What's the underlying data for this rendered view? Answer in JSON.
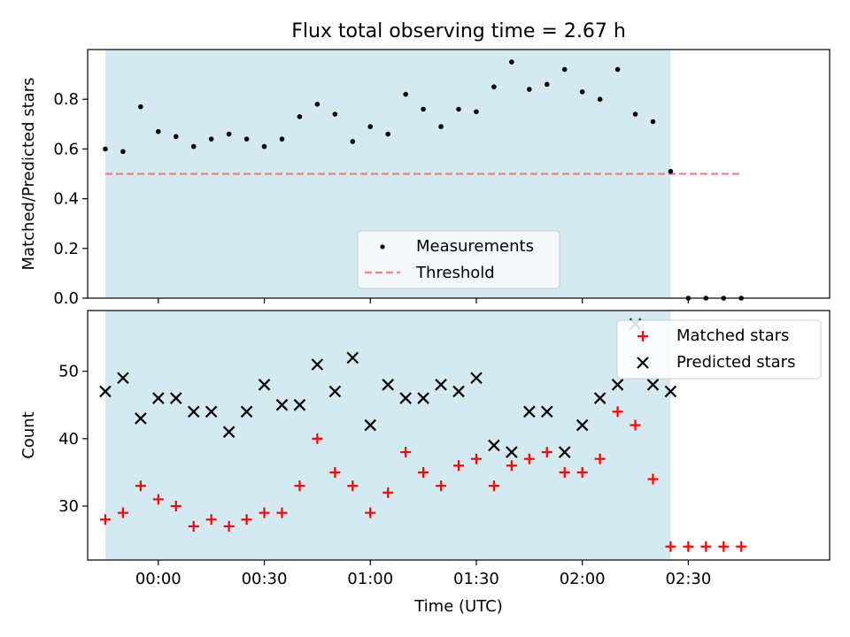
{
  "title": "Flux total observing time = 2.67 h",
  "colors": {
    "shade": "#d4eaf0",
    "measurement": "#000000",
    "threshold": "#f08080",
    "matched": "#ff0000",
    "predicted": "#000000"
  },
  "chart_data": [
    {
      "type": "scatter",
      "ylabel": "Matched/Predicted stars",
      "xlabel": "",
      "xlim": [
        -20,
        190
      ],
      "ylim": [
        0,
        1.0
      ],
      "yticks": [
        0.0,
        0.2,
        0.4,
        0.6,
        0.8
      ],
      "ytick_labels": [
        "0.0",
        "0.2",
        "0.4",
        "0.6",
        "0.8"
      ],
      "x_ticks_minutes": [
        0,
        30,
        60,
        90,
        120,
        150
      ],
      "shaded_span_minutes": [
        -15,
        145
      ],
      "threshold": {
        "value": 0.5,
        "x_range_minutes": [
          -15,
          165
        ]
      },
      "legend": {
        "position": "lower-center",
        "entries": [
          "Measurements",
          "Threshold"
        ]
      },
      "series": [
        {
          "name": "Measurements",
          "marker": "dot",
          "x": [
            -15,
            -10,
            -5,
            0,
            5,
            10,
            15,
            20,
            25,
            30,
            35,
            40,
            45,
            50,
            55,
            60,
            65,
            70,
            75,
            80,
            85,
            90,
            95,
            100,
            105,
            110,
            115,
            120,
            125,
            130,
            135,
            140,
            145,
            150,
            155,
            160,
            165
          ],
          "y": [
            0.6,
            0.59,
            0.77,
            0.67,
            0.65,
            0.61,
            0.64,
            0.66,
            0.64,
            0.61,
            0.64,
            0.73,
            0.78,
            0.74,
            0.63,
            0.69,
            0.66,
            0.82,
            0.76,
            0.69,
            0.76,
            0.75,
            0.85,
            0.95,
            0.84,
            0.86,
            0.92,
            0.83,
            0.8,
            0.92,
            0.74,
            0.71,
            0.51,
            0.0,
            0.0,
            0.0,
            0.0
          ]
        }
      ]
    },
    {
      "type": "scatter",
      "ylabel": "Count",
      "xlabel": "Time (UTC)",
      "xlim": [
        -20,
        190
      ],
      "ylim": [
        22,
        59
      ],
      "yticks": [
        30,
        40,
        50
      ],
      "ytick_labels": [
        "30",
        "40",
        "50"
      ],
      "x_ticks_minutes": [
        0,
        30,
        60,
        90,
        120,
        150
      ],
      "xtick_labels": [
        "00:00",
        "00:30",
        "01:00",
        "01:30",
        "02:00",
        "02:30"
      ],
      "shaded_span_minutes": [
        -15,
        145
      ],
      "legend": {
        "position": "upper-right",
        "entries": [
          "Matched stars",
          "Predicted stars"
        ]
      },
      "series": [
        {
          "name": "Matched stars",
          "marker": "plus",
          "x": [
            -15,
            -10,
            -5,
            0,
            5,
            10,
            15,
            20,
            25,
            30,
            35,
            40,
            45,
            50,
            55,
            60,
            65,
            70,
            75,
            80,
            85,
            90,
            95,
            100,
            105,
            110,
            115,
            120,
            125,
            130,
            135,
            140,
            145,
            150,
            155,
            160,
            165
          ],
          "y": [
            28,
            29,
            33,
            31,
            30,
            27,
            28,
            27,
            28,
            29,
            29,
            33,
            40,
            35,
            33,
            29,
            32,
            38,
            35,
            33,
            36,
            37,
            33,
            36,
            37,
            38,
            35,
            35,
            37,
            44,
            42,
            34,
            24,
            24,
            24,
            24,
            24
          ]
        },
        {
          "name": "Predicted stars",
          "marker": "x",
          "x": [
            -15,
            -10,
            -5,
            0,
            5,
            10,
            15,
            20,
            25,
            30,
            35,
            40,
            45,
            50,
            55,
            60,
            65,
            70,
            75,
            80,
            85,
            90,
            95,
            100,
            105,
            110,
            115,
            120,
            125,
            130,
            135,
            140,
            145
          ],
          "y": [
            47,
            49,
            43,
            46,
            46,
            44,
            44,
            41,
            44,
            48,
            45,
            45,
            51,
            47,
            52,
            42,
            48,
            46,
            46,
            48,
            47,
            49,
            39,
            38,
            44,
            44,
            38,
            42,
            46,
            48,
            57,
            48,
            47
          ]
        }
      ]
    }
  ]
}
